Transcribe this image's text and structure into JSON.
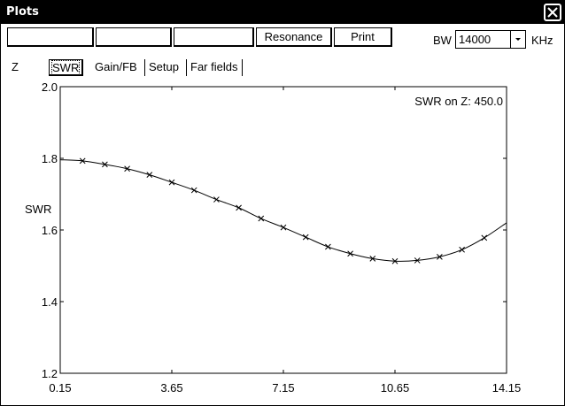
{
  "window": {
    "title": "Plots"
  },
  "toolbar": {
    "blank_buttons": [
      "",
      "",
      ""
    ],
    "resonance_label": "Resonance",
    "print_label": "Print",
    "bw_label": "BW",
    "bw_value": "14000",
    "bw_unit": "KHz"
  },
  "tabs": [
    "Z",
    "SWR",
    "Gain/FB",
    "Setup",
    "Far fields"
  ],
  "active_tab": "SWR",
  "chart_data": {
    "type": "line",
    "title": "SWR on Z: 450.0",
    "xlabel": "",
    "ylabel": "SWR",
    "xlim": [
      0.15,
      14.15
    ],
    "ylim": [
      1.2,
      2.0
    ],
    "xticks": [
      "0.15",
      "3.65",
      "7.15",
      "10.65",
      "14.15"
    ],
    "yticks": [
      "1.2",
      "1.4",
      "1.6",
      "1.8",
      "2.0"
    ],
    "grid": false,
    "series": [
      {
        "x": [
          0.15,
          0.85,
          1.55,
          2.25,
          2.95,
          3.65,
          4.35,
          5.05,
          5.75,
          6.45,
          7.15,
          7.85,
          8.55,
          9.25,
          9.95,
          10.65,
          11.35,
          12.05,
          12.75,
          13.45,
          14.15
        ],
        "y": [
          1.796,
          1.793,
          1.783,
          1.771,
          1.754,
          1.733,
          1.711,
          1.685,
          1.662,
          1.632,
          1.607,
          1.58,
          1.553,
          1.534,
          1.52,
          1.513,
          1.515,
          1.525,
          1.545,
          1.578,
          1.62
        ]
      }
    ]
  }
}
